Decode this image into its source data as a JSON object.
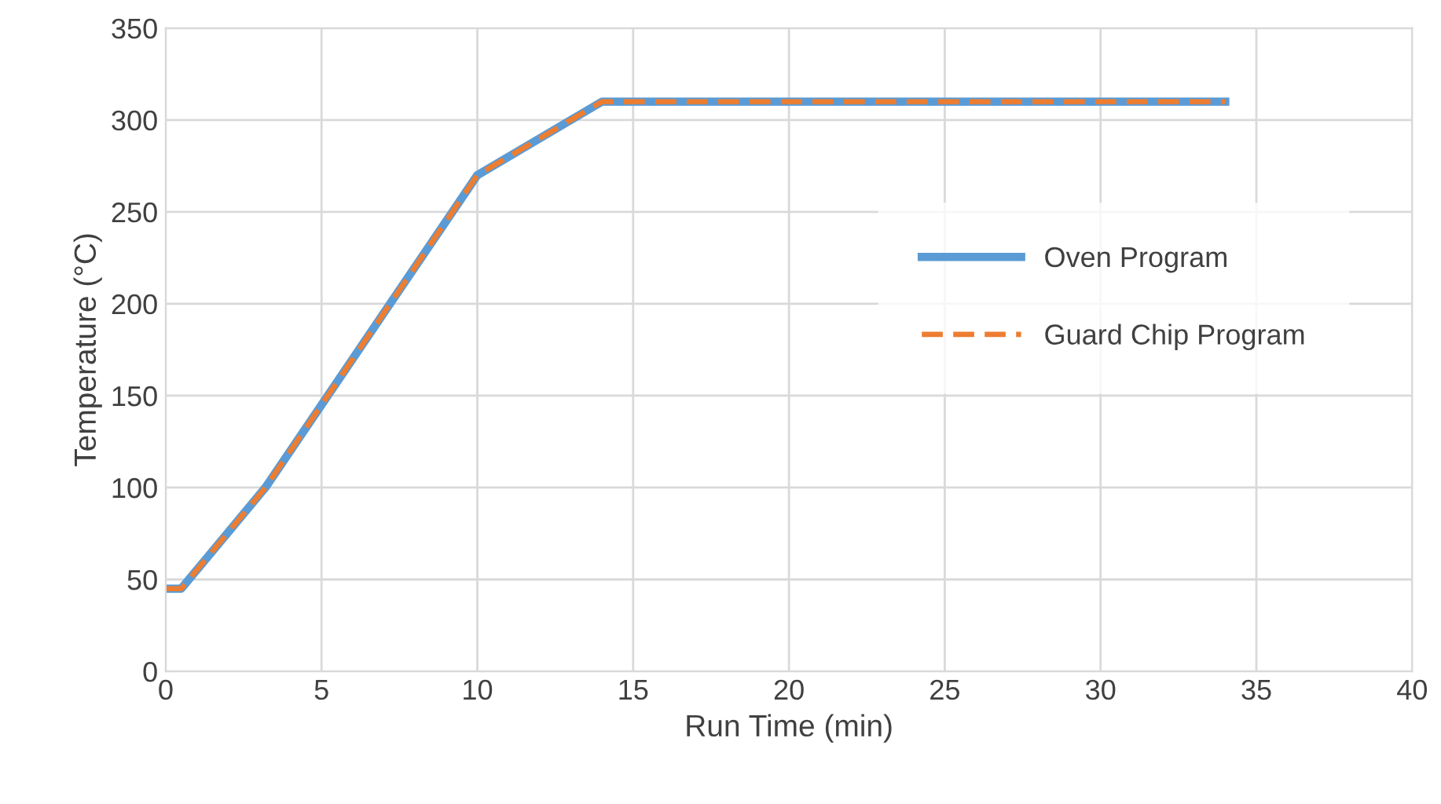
{
  "chart_data": {
    "type": "line",
    "xlabel": "Run Time (min)",
    "ylabel": "Temperature (°C)",
    "xlim": [
      0,
      40
    ],
    "xticks": [
      0,
      5,
      10,
      15,
      20,
      25,
      30,
      35,
      40
    ],
    "ylim": [
      0,
      350
    ],
    "yticks": [
      0,
      50,
      100,
      150,
      200,
      250,
      300,
      350
    ],
    "grid": true,
    "legend": "right",
    "series": [
      {
        "name": "Oven Program",
        "color": "#5b9bd5",
        "line_style": "solid",
        "x": [
          0,
          0.5,
          3.2,
          10,
          14,
          34
        ],
        "values": [
          45,
          45,
          100,
          270,
          310,
          310
        ]
      },
      {
        "name": "Guard Chip Program",
        "color": "#ed7d31",
        "line_style": "dashed",
        "x": [
          0,
          0.5,
          3.2,
          10,
          14,
          34
        ],
        "values": [
          45,
          45,
          100,
          270,
          310,
          310
        ]
      }
    ]
  }
}
